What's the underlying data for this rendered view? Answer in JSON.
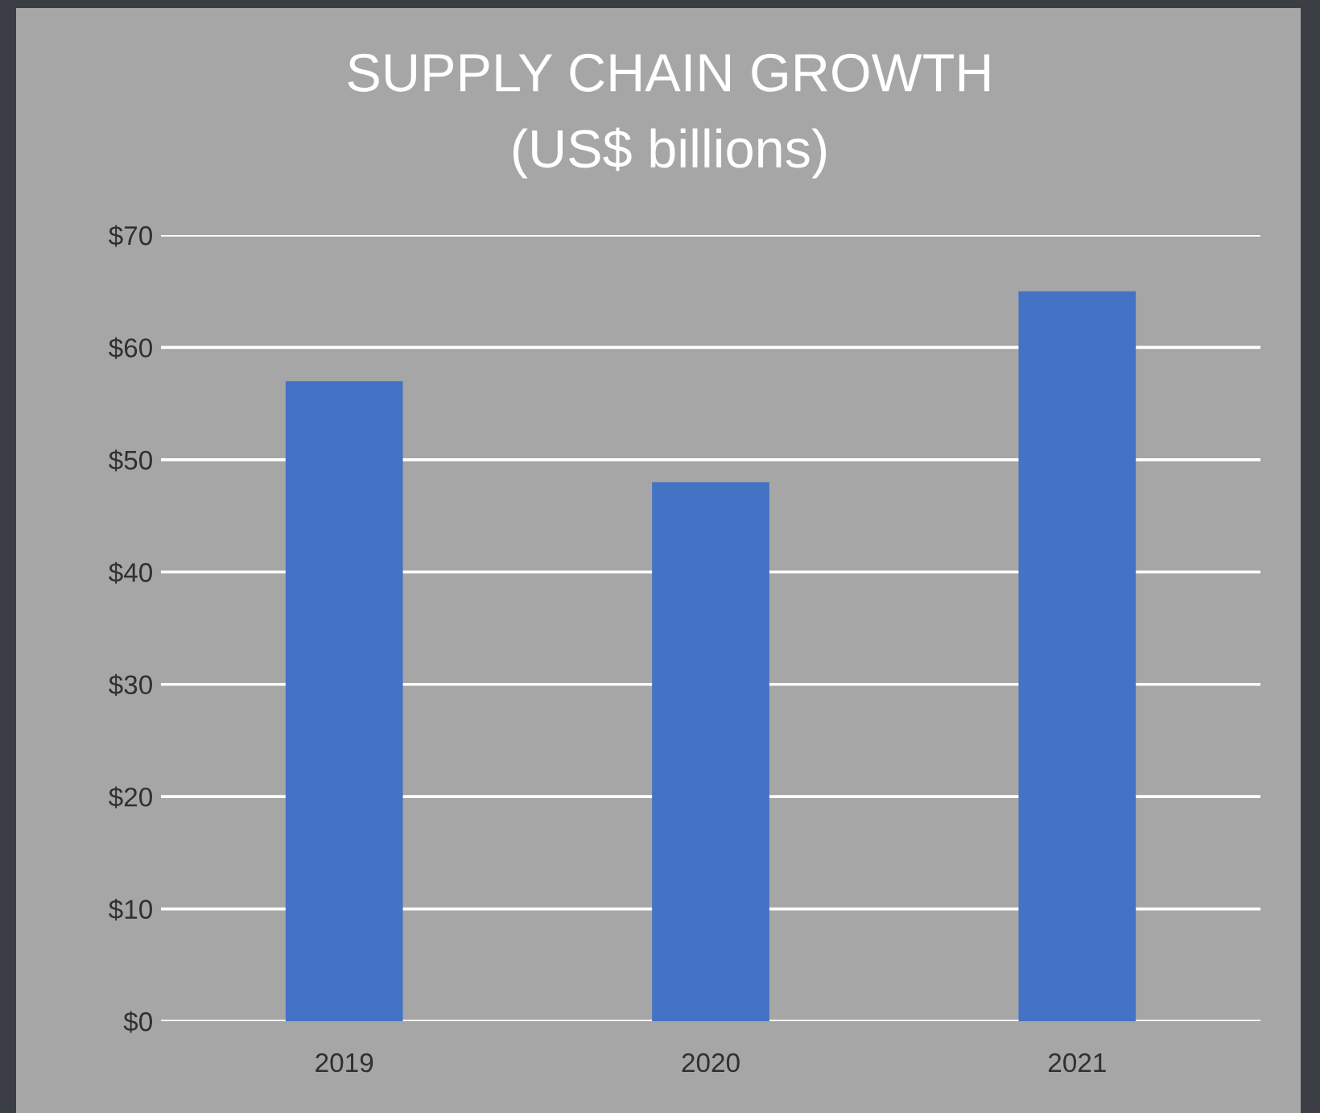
{
  "chart_data": {
    "type": "bar",
    "title": "SUPPLY CHAIN GROWTH",
    "subtitle": "(US$ billions)",
    "categories": [
      "2019",
      "2020",
      "2021"
    ],
    "values": [
      57,
      48,
      65
    ],
    "color": "#4472c4",
    "ylim": [
      0,
      70
    ],
    "yticks": [
      {
        "value": 0,
        "label": "$0"
      },
      {
        "value": 10,
        "label": "$10"
      },
      {
        "value": 20,
        "label": "$20"
      },
      {
        "value": 30,
        "label": "$30"
      },
      {
        "value": 40,
        "label": "$40"
      },
      {
        "value": 50,
        "label": "$50"
      },
      {
        "value": 60,
        "label": "$60"
      },
      {
        "value": 70,
        "label": "$70"
      }
    ],
    "grid": "y",
    "legend": false
  }
}
